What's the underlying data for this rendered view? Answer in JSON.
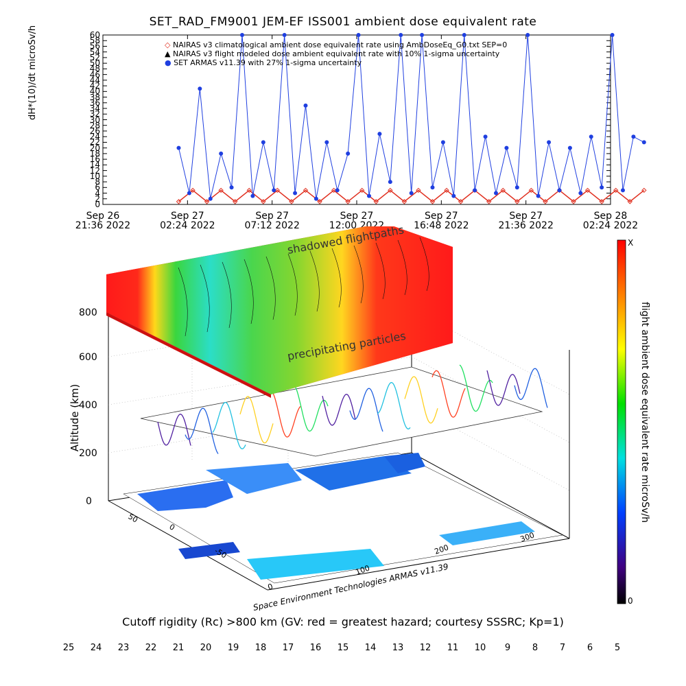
{
  "title": "SET_RAD_FM9001  JEM-EF ISS001 ambient dose equivalent rate",
  "chart_data": [
    {
      "type": "line",
      "ylabel": "dH*(10)/dt microSv/h",
      "ylim": [
        0,
        60
      ],
      "yticks": [
        "0",
        "2",
        "4",
        "6",
        "8",
        "10",
        "12",
        "14",
        "16",
        "18",
        "20",
        "22",
        "24",
        "26",
        "28",
        "30",
        "32",
        "34",
        "36",
        "38",
        "40",
        "42",
        "44",
        "46",
        "48",
        "50",
        "52",
        "54",
        "56",
        "58",
        "60"
      ],
      "xticks": [
        {
          "line1": "Sep 26",
          "line2": "21:36 2022"
        },
        {
          "line1": "Sep 27",
          "line2": "02:24 2022"
        },
        {
          "line1": "Sep 27",
          "line2": "07:12 2022"
        },
        {
          "line1": "Sep 27",
          "line2": "12:00 2022"
        },
        {
          "line1": "Sep 27",
          "line2": "16:48 2022"
        },
        {
          "line1": "Sep 27",
          "line2": "21:36 2022"
        },
        {
          "line1": "Sep 28",
          "line2": "02:24 2022"
        }
      ],
      "legend_placement": "top",
      "legend": [
        {
          "symbol": "◇",
          "color": "#e03020",
          "label": "NAIRAS v3 climatological ambient dose equivalent rate using AmbDoseEq_G0.txt SEP=0"
        },
        {
          "symbol": "▲",
          "color": "#000000",
          "label": "NAIRAS v3 flight modeled dose ambient equivalent rate with 10% 1-sigma uncertainty"
        },
        {
          "symbol": "●",
          "color": "#1f3fe0",
          "label": "SET ARMAS v11.39 with 27% 1-sigma uncertainty"
        }
      ],
      "series": [
        {
          "name": "NAIRAS v3 climatological ambient dose equivalent rate using AmbDoseEq_G0.txt SEP=0",
          "color": "#e03020",
          "x_hours": [
            0.0,
            0.8,
            1.6,
            2.4,
            3.2,
            4.0,
            4.8,
            5.6,
            6.4,
            7.2,
            8.0,
            8.8,
            9.6,
            10.4,
            11.2,
            12.0,
            12.8,
            13.6,
            14.4,
            15.2,
            16.0,
            16.8,
            17.6,
            18.4,
            19.2,
            20.0,
            20.8,
            21.6,
            22.4,
            23.2,
            24.0,
            24.8,
            25.6,
            26.4
          ],
          "values": [
            1,
            5,
            1,
            5,
            1,
            5,
            1,
            5,
            1,
            5,
            1,
            5,
            1,
            5,
            1,
            5,
            1,
            5,
            1,
            5,
            1,
            5,
            1,
            5,
            1,
            5,
            1,
            5,
            1,
            5,
            1,
            5,
            1,
            5
          ]
        },
        {
          "name": "SET ARMAS v11.39 with 27% 1-sigma uncertainty",
          "color": "#1f3fe0",
          "x_hours": [
            0.0,
            0.6,
            1.2,
            1.8,
            2.4,
            3.0,
            3.6,
            4.2,
            4.8,
            5.4,
            6.0,
            6.6,
            7.2,
            7.8,
            8.4,
            9.0,
            9.6,
            10.2,
            10.8,
            11.4,
            12.0,
            12.6,
            13.2,
            13.8,
            14.4,
            15.0,
            15.6,
            16.2,
            16.8,
            17.4,
            18.0,
            18.6,
            19.2,
            19.8,
            20.4,
            21.0,
            21.6,
            22.2,
            22.8,
            23.4,
            24.0,
            24.6,
            25.2,
            25.8,
            26.4
          ],
          "values": [
            20,
            4,
            41,
            2,
            18,
            6,
            60,
            3,
            22,
            5,
            60,
            4,
            35,
            2,
            22,
            5,
            18,
            60,
            3,
            25,
            8,
            60,
            4,
            60,
            6,
            22,
            3,
            60,
            5,
            24,
            4,
            20,
            6,
            60,
            3,
            22,
            5,
            20,
            4,
            24,
            6,
            60,
            5,
            24,
            22
          ]
        }
      ],
      "x_start": "Sep 26 21:36 2022"
    },
    {
      "type": "heatmap",
      "zlabel": "Altitude (km)",
      "zticks": [
        "0",
        "200",
        "400",
        "600",
        "800"
      ],
      "lon_ticks": [
        "0",
        "100",
        "200",
        "300"
      ],
      "lat_ticks": [
        "-50",
        "0",
        "50"
      ],
      "top_colorbar_label": "flight ambient dose equivalent rate microSv/h",
      "top_colorbar_max_label": "X",
      "top_colorbar_min_label": "0",
      "annotations": [
        "shadowed flightpaths",
        "precipitating particles"
      ],
      "credit": "Space Environment Technologies ARMAS v11.39"
    },
    {
      "type": "heatmap",
      "colorbar_title": "Cutoff rigidity (Rc) >800 km (GV: red = greatest hazard; courtesy SSSRC; Kp=1)",
      "colorbar_ticks": [
        "25",
        "24",
        "23",
        "22",
        "21",
        "20",
        "19",
        "18",
        "17",
        "16",
        "15",
        "14",
        "13",
        "12",
        "11",
        "10",
        "9",
        "8",
        "7",
        "6",
        "5"
      ]
    }
  ]
}
